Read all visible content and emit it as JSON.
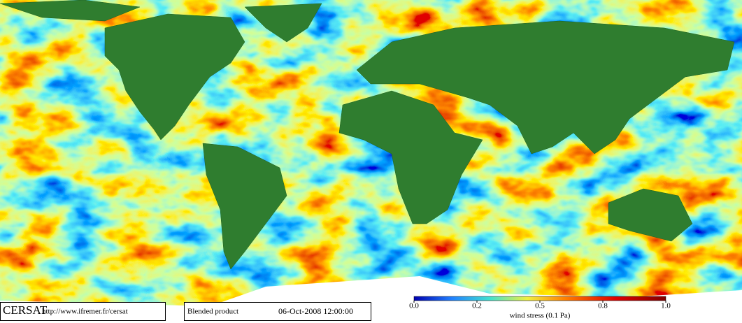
{
  "footer": {
    "logo": "CERSAT",
    "url": "http://www.ifremer.fr/cersat",
    "product": "Blended product",
    "date": "06-Oct-2008 12:00:00"
  },
  "colorbar": {
    "label": "wind stress (0.1 Pa)",
    "ticks": [
      {
        "value": 0,
        "label": "0.0"
      },
      {
        "value": 0.2,
        "label": "0.2"
      },
      {
        "value": 0.5,
        "label": "0.5"
      },
      {
        "value": 0.8,
        "label": "0.8"
      },
      {
        "value": 1,
        "label": "1.0"
      }
    ]
  }
}
